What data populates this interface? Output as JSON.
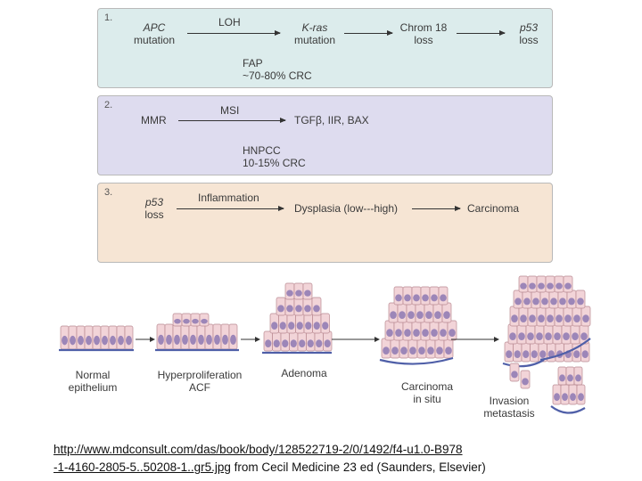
{
  "panels": [
    {
      "number": "1.",
      "bg": "#dcecec",
      "step1_top": "APC",
      "step1_bottom": "mutation",
      "arrow1_label": "LOH",
      "step2_top": "K-ras",
      "step2_bottom": "mutation",
      "step3_top": "Chrom 18",
      "step3_bottom": "loss",
      "step4_top": "p53",
      "step4_bottom": "loss",
      "syndrome": "FAP",
      "frequency": "~70-80% CRC"
    },
    {
      "number": "2.",
      "bg": "#dedcef",
      "step1": "MMR",
      "arrow1_label": "MSI",
      "step2": "TGFβ, IIR, BAX",
      "syndrome": "HNPCC",
      "frequency": "10-15% CRC"
    },
    {
      "number": "3.",
      "bg": "#f6e5d4",
      "step1_top": "p53",
      "step1_bottom": "loss",
      "arrow1_label": "Inflammation",
      "step2": "Dysplasia (low---high)",
      "step3": "Carcinoma"
    }
  ],
  "stages": [
    {
      "line1": "Normal",
      "line2": "epithelium"
    },
    {
      "line1": "Hyperproliferation",
      "line2": "ACF"
    },
    {
      "line1": "Adenoma",
      "line2": ""
    },
    {
      "line1": "Carcinoma",
      "line2": "in situ"
    },
    {
      "line1": "Invasion",
      "line2": "metastasis"
    }
  ],
  "colors": {
    "cell_fill": "#f2d4d8",
    "cell_stroke": "#b98a92",
    "nucleus": "#9c86b8",
    "basement": "#4f5fa8"
  },
  "citation": {
    "link_line1": "http://www.mdconsult.com/das/book/body/128522719-2/0/1492/f4-u1.0-B978",
    "link_line2": "-1-4160-2805-5..50208-1..gr5.jpg",
    "rest": " from Cecil Medicine 23 ed (Saunders, Elsevier)"
  }
}
